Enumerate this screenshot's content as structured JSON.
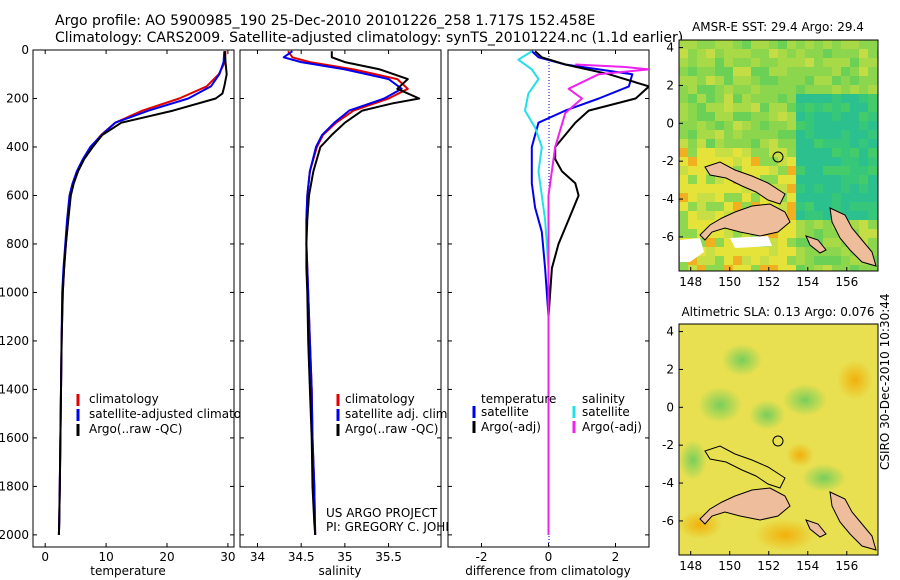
{
  "header": {
    "line1": "Argo profile: AO 5900985_190 25-Dec-2010 20101226_258 1.717S 152.458E",
    "line2": "Climatology: CARS2009. Satellite-adjusted climatology: synTS_20101224.nc (1.1d earlier)"
  },
  "credit": {
    "line1": "US ARGO PROJECT",
    "line2": "PI: GREGORY C. JOHNSON"
  },
  "stamp": "CSIRO 30-Dec-2010 10:30:44",
  "colors": {
    "climatology": "#e00000",
    "satellite": "#0000ee",
    "argo": "#000000",
    "sat_salinity": "#22e0e8",
    "argo_salinity": "#ee22ee"
  },
  "chart_data": [
    {
      "type": "line",
      "xlabel": "temperature",
      "ylabel": "",
      "xlim": [
        -2,
        31
      ],
      "ylim": [
        2050,
        0
      ],
      "y_reversed": true,
      "xticks": [
        0,
        10,
        20,
        30
      ],
      "yticks": [
        0,
        200,
        400,
        600,
        800,
        1000,
        1200,
        1400,
        1600,
        1800,
        2000
      ],
      "legend": [
        "climatology",
        "satellite-adjusted climatology",
        "Argo(..raw -QC)"
      ],
      "legend_location": "lower-left",
      "series": [
        {
          "name": "climatology",
          "color": "#e00000",
          "x": [
            29.6,
            29.5,
            28.5,
            26.5,
            22,
            16,
            11.5,
            9.2,
            7.5,
            6.3,
            5.3,
            4.6,
            4.1,
            3.7,
            3.4,
            3.1,
            2.9,
            2.7,
            2.6,
            2.5,
            2.4,
            2.3,
            2.25
          ],
          "y": [
            5,
            50,
            100,
            150,
            200,
            250,
            300,
            350,
            400,
            450,
            500,
            550,
            600,
            700,
            800,
            900,
            1000,
            1200,
            1400,
            1600,
            1800,
            1950,
            2000
          ]
        },
        {
          "name": "satellite-adjusted climatology",
          "color": "#0000ee",
          "x": [
            29.4,
            29.3,
            28.6,
            27.2,
            23.5,
            17,
            11.5,
            9.3,
            7.4,
            6.2,
            5.2,
            4.5,
            4.0,
            3.6,
            3.3,
            3.0,
            2.8,
            2.7,
            2.6,
            2.5,
            2.4,
            2.3,
            2.25
          ],
          "y": [
            5,
            50,
            100,
            150,
            200,
            250,
            300,
            350,
            400,
            450,
            500,
            550,
            600,
            700,
            800,
            900,
            1000,
            1200,
            1400,
            1600,
            1800,
            1950,
            2000
          ]
        },
        {
          "name": "Argo(..raw -QC)",
          "color": "#000000",
          "x": [
            29.5,
            29.6,
            29.8,
            29.4,
            29.1,
            28.0,
            21,
            12.5,
            9.4,
            7.8,
            6.4,
            5.4,
            4.7,
            4.2,
            3.8,
            3.4,
            3.1,
            2.9,
            2.7,
            2.6,
            2.5,
            2.4,
            2.3,
            2.25
          ],
          "y": [
            5,
            50,
            100,
            150,
            180,
            200,
            250,
            300,
            350,
            400,
            450,
            500,
            550,
            600,
            700,
            800,
            900,
            1000,
            1200,
            1400,
            1600,
            1800,
            1950,
            2000
          ]
        }
      ]
    },
    {
      "type": "line",
      "xlabel": "salinity",
      "ylabel": "",
      "xlim": [
        33.8,
        36.1
      ],
      "ylim": [
        2050,
        0
      ],
      "y_reversed": true,
      "xticks": [
        34,
        34.5,
        35,
        35.5
      ],
      "yticks": [
        0,
        200,
        400,
        600,
        800,
        1000,
        1200,
        1400,
        1600,
        1800,
        2000
      ],
      "legend": [
        "climatology",
        "satellite adj. clim.",
        "Argo(..raw -QC)"
      ],
      "legend_location": "lower-left",
      "series": [
        {
          "name": "climatology",
          "color": "#e00000",
          "x": [
            34.35,
            34.4,
            34.6,
            35.1,
            35.6,
            35.72,
            35.5,
            35.1,
            34.9,
            34.75,
            34.68,
            34.6,
            34.57,
            34.56,
            34.56,
            34.57,
            34.58,
            34.6,
            34.62,
            34.63,
            34.65,
            34.66
          ],
          "y": [
            5,
            30,
            50,
            80,
            120,
            160,
            200,
            250,
            300,
            350,
            400,
            500,
            600,
            700,
            800,
            900,
            1000,
            1200,
            1400,
            1600,
            1800,
            2000
          ]
        },
        {
          "name": "satellite adj. clim.",
          "color": "#0000ee",
          "x": [
            34.4,
            34.3,
            34.5,
            35.0,
            35.5,
            35.65,
            35.45,
            35.05,
            34.88,
            34.74,
            34.67,
            34.6,
            34.57,
            34.56,
            34.56,
            34.57,
            34.58,
            34.6,
            34.62,
            34.63,
            34.65,
            34.66
          ],
          "y": [
            5,
            30,
            50,
            80,
            120,
            160,
            200,
            250,
            300,
            350,
            400,
            500,
            600,
            700,
            800,
            900,
            1000,
            1200,
            1400,
            1600,
            1800,
            2000
          ]
        },
        {
          "name": "Argo(..raw -QC)",
          "color": "#000000",
          "x": [
            34.85,
            34.85,
            35.0,
            35.4,
            35.72,
            35.6,
            35.85,
            35.55,
            35.2,
            35.0,
            34.85,
            34.72,
            34.64,
            34.59,
            34.57,
            34.56,
            34.56,
            34.57,
            34.58,
            34.6,
            34.62,
            34.63,
            34.65,
            34.66
          ],
          "y": [
            5,
            30,
            50,
            80,
            120,
            160,
            200,
            220,
            250,
            300,
            350,
            400,
            500,
            600,
            700,
            800,
            900,
            1000,
            1200,
            1400,
            1600,
            1800,
            1950,
            2000
          ]
        }
      ]
    },
    {
      "type": "line",
      "xlabel": "difference from climatology",
      "ylabel": "",
      "xlim": [
        -3,
        3
      ],
      "ylim": [
        2050,
        0
      ],
      "y_reversed": true,
      "xticks": [
        -2,
        0,
        2
      ],
      "yticks": [
        0,
        200,
        400,
        600,
        800,
        1000,
        1200,
        1400,
        1600,
        1800,
        2000
      ],
      "legend": [
        "temperature",
        "satellite",
        "Argo(-adj)",
        "salinity",
        "satellite",
        "Argo(-adj)"
      ],
      "legend_location": "lower",
      "series": [
        {
          "name": "temperature satellite",
          "color": "#0000ee",
          "x": [
            -0.5,
            -0.3,
            0.5,
            2.5,
            2.4,
            1.5,
            0.5,
            -0.3,
            -0.5,
            -0.5,
            -0.4,
            -0.2,
            -0.1,
            0.0,
            0.0,
            0.0,
            0.0
          ],
          "y": [
            5,
            30,
            60,
            100,
            150,
            200,
            250,
            300,
            400,
            550,
            650,
            750,
            900,
            1100,
            1400,
            1700,
            2000
          ]
        },
        {
          "name": "temperature Argo(-adj)",
          "color": "#000000",
          "x": [
            -0.4,
            -0.2,
            0.5,
            1.8,
            3.0,
            2.6,
            1.2,
            0.8,
            0.5,
            0.2,
            0.2,
            0.4,
            0.8,
            0.9,
            0.6,
            0.3,
            0.1,
            0.0,
            0.0,
            0.0,
            0.0
          ],
          "y": [
            5,
            30,
            60,
            100,
            150,
            200,
            250,
            300,
            350,
            400,
            450,
            500,
            550,
            600,
            700,
            800,
            900,
            1100,
            1400,
            1700,
            2000
          ]
        },
        {
          "name": "salinity satellite",
          "color": "#22e0e8",
          "x": [
            -0.5,
            -0.9,
            -0.5,
            -0.3,
            -0.6,
            -0.7,
            -0.4,
            -0.2,
            -0.3,
            -0.2,
            -0.1,
            0.0,
            0.0,
            0.0,
            0.0
          ],
          "y": [
            5,
            40,
            80,
            120,
            180,
            250,
            320,
            400,
            500,
            600,
            700,
            900,
            1200,
            1500,
            2000
          ]
        },
        {
          "name": "salinity Argo(-adj)",
          "color": "#ee22ee",
          "x": [
            0.8,
            2.3,
            3.0,
            1.5,
            0.6,
            1.0,
            0.5,
            0.2,
            0.0,
            0.0,
            0.0
          ],
          "y": [
            60,
            70,
            80,
            100,
            160,
            200,
            260,
            400,
            600,
            1000,
            2000
          ]
        }
      ]
    },
    {
      "type": "heatmap",
      "title": "AMSR-E SST: 29.4 Argo: 29.4",
      "xlim": [
        147.4,
        157.6
      ],
      "ylim": [
        -7.8,
        4.4
      ],
      "xticks": [
        148,
        150,
        152,
        154,
        156
      ],
      "yticks": [
        -6,
        -4,
        -2,
        0,
        2,
        4
      ],
      "argo_location": {
        "lon": 152.458,
        "lat": -1.717
      }
    },
    {
      "type": "heatmap",
      "title": "Altimetric SLA: 0.13 Argo: 0.076",
      "xlim": [
        147.4,
        157.6
      ],
      "ylim": [
        -7.8,
        4.4
      ],
      "xticks": [
        148,
        150,
        152,
        154,
        156
      ],
      "yticks": [
        -6,
        -4,
        -2,
        0,
        2,
        4
      ],
      "argo_location": {
        "lon": 152.458,
        "lat": -1.717
      }
    }
  ]
}
